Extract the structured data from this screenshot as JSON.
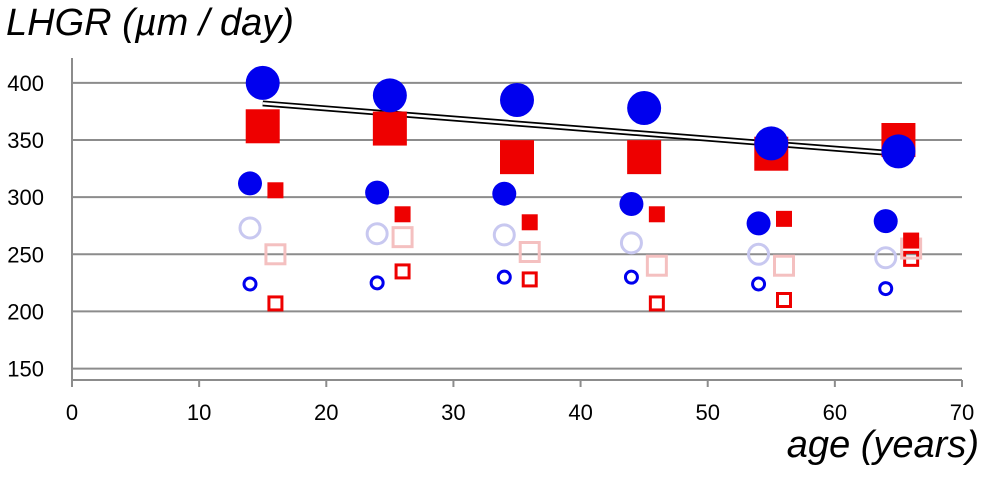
{
  "chart_data": {
    "type": "scatter",
    "title": "",
    "ylabel": "LHGR (µm / day)",
    "xlabel": "age (years)",
    "xlim": [
      0,
      70
    ],
    "ylim": [
      140,
      420
    ],
    "xticks": [
      0,
      10,
      20,
      30,
      40,
      50,
      60,
      70
    ],
    "yticks": [
      150,
      200,
      250,
      300,
      350,
      400
    ],
    "grid": "horizontal",
    "legend": "none",
    "colors": {
      "blue": "#0000ee",
      "red": "#ee0000",
      "lightblue": "#c8c8f0",
      "pink": "#f4c0c0",
      "line": "#000000"
    },
    "series": [
      {
        "color": "blue",
        "shape": "circle",
        "fill": true,
        "size": "large",
        "points": [
          [
            15,
            400
          ],
          [
            25,
            389
          ],
          [
            35,
            385
          ],
          [
            45,
            378
          ],
          [
            55,
            347
          ],
          [
            65,
            340
          ]
        ]
      },
      {
        "color": "red",
        "shape": "square",
        "fill": true,
        "size": "large",
        "points": [
          [
            15,
            362
          ],
          [
            25,
            360
          ],
          [
            35,
            335
          ],
          [
            45,
            335
          ],
          [
            55,
            338
          ],
          [
            65,
            350
          ]
        ]
      },
      {
        "color": "blue",
        "shape": "circle",
        "fill": true,
        "size": "medium",
        "points": [
          [
            14,
            312
          ],
          [
            24,
            304
          ],
          [
            34,
            303
          ],
          [
            44,
            294
          ],
          [
            54,
            277
          ],
          [
            64,
            279
          ]
        ]
      },
      {
        "color": "red",
        "shape": "square",
        "fill": true,
        "size": "small",
        "points": [
          [
            16,
            306
          ],
          [
            26,
            285
          ],
          [
            36,
            278
          ],
          [
            46,
            285
          ],
          [
            56,
            281
          ],
          [
            66,
            262
          ]
        ]
      },
      {
        "color": "lightblue",
        "shape": "circle",
        "fill": false,
        "size": "medium",
        "points": [
          [
            14,
            273
          ],
          [
            24,
            268
          ],
          [
            34,
            267
          ],
          [
            44,
            260
          ],
          [
            54,
            250
          ],
          [
            64,
            247
          ]
        ]
      },
      {
        "color": "pink",
        "shape": "square",
        "fill": false,
        "size": "medium",
        "points": [
          [
            16,
            250
          ],
          [
            26,
            265
          ],
          [
            36,
            252
          ],
          [
            46,
            240
          ],
          [
            56,
            240
          ],
          [
            66,
            255
          ]
        ]
      },
      {
        "color": "blue",
        "shape": "circle",
        "fill": false,
        "size": "small",
        "points": [
          [
            14,
            224
          ],
          [
            24,
            225
          ],
          [
            34,
            230
          ],
          [
            44,
            230
          ],
          [
            54,
            224
          ],
          [
            64,
            220
          ]
        ]
      },
      {
        "color": "red",
        "shape": "square",
        "fill": false,
        "size": "small",
        "points": [
          [
            16,
            207
          ],
          [
            26,
            235
          ],
          [
            36,
            228
          ],
          [
            46,
            207
          ],
          [
            56,
            210
          ],
          [
            66,
            246
          ]
        ]
      }
    ],
    "trendline": {
      "from": [
        15,
        382
      ],
      "to": [
        65,
        338
      ]
    }
  }
}
